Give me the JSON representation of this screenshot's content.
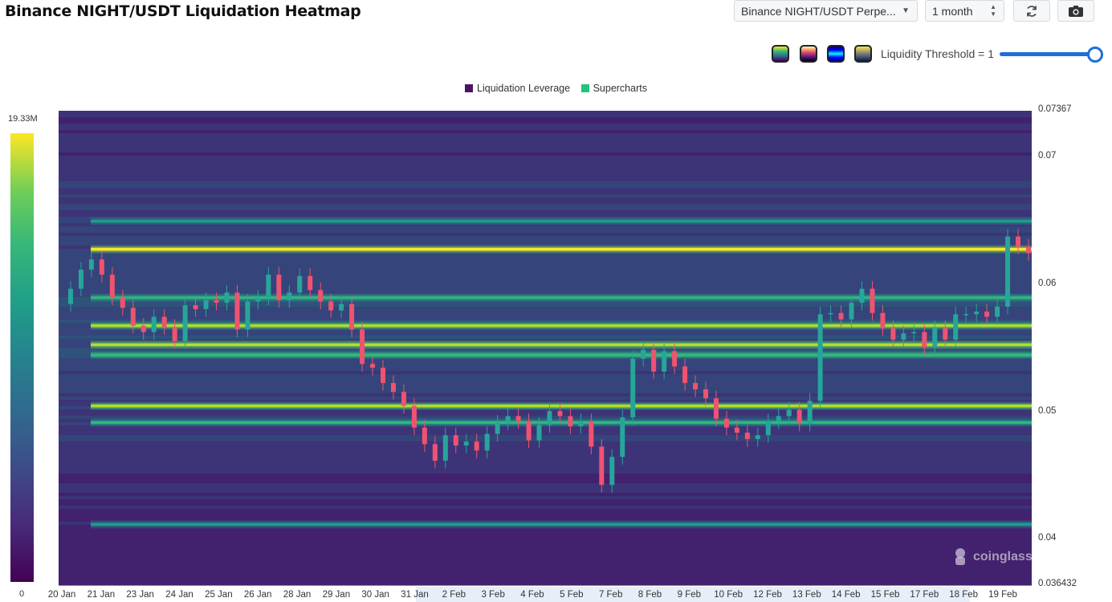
{
  "header": {
    "title": "Binance NIGHT/USDT Liquidation Heatmap",
    "pair_select": "Binance NIGHT/USDT Perpe...",
    "range_select": "1 month"
  },
  "controls": {
    "threshold_label": "Liquidity Threshold = 1",
    "threshold_value": 1,
    "color_themes": [
      "viridis-theme",
      "magma-theme",
      "jet-theme",
      "cividis-theme"
    ]
  },
  "colorbar": {
    "max_label": "19.33M",
    "min_label": "0"
  },
  "watermark": {
    "text": "coinglass"
  },
  "chart_data": {
    "type": "heatmap",
    "title": "Binance NIGHT/USDT Liquidation Heatmap",
    "legend": [
      {
        "name": "Liquidation Leverage",
        "color": "#4a1463"
      },
      {
        "name": "Supercharts",
        "color": "#21c47b"
      }
    ],
    "x_labels": [
      "20 Jan",
      "21 Jan",
      "23 Jan",
      "24 Jan",
      "25 Jan",
      "26 Jan",
      "28 Jan",
      "29 Jan",
      "30 Jan",
      "31 Jan",
      "2 Feb",
      "3 Feb",
      "4 Feb",
      "5 Feb",
      "7 Feb",
      "8 Feb",
      "9 Feb",
      "10 Feb",
      "12 Feb",
      "13 Feb",
      "14 Feb",
      "15 Feb",
      "17 Feb",
      "18 Feb",
      "19 Feb"
    ],
    "y_axis": {
      "min": 0.036432,
      "max": 0.07367,
      "tick_labels": [
        "0.07367",
        "0.07",
        "0.06",
        "0.05",
        "0.04",
        "0.036432"
      ]
    },
    "color_scale": {
      "min": 0,
      "max": 19330000,
      "labels": [
        "0",
        "19.33M"
      ]
    },
    "price_path": [
      [
        0,
        0.0585
      ],
      [
        1,
        0.0597
      ],
      [
        2,
        0.0612
      ],
      [
        3,
        0.062
      ],
      [
        4,
        0.0608
      ],
      [
        5,
        0.059
      ],
      [
        6,
        0.0582
      ],
      [
        7,
        0.0568
      ],
      [
        8,
        0.0563
      ],
      [
        9,
        0.0575
      ],
      [
        10,
        0.0567
      ],
      [
        11,
        0.0556
      ],
      [
        12,
        0.0584
      ],
      [
        13,
        0.0581
      ],
      [
        14,
        0.0588
      ],
      [
        15,
        0.0586
      ],
      [
        16,
        0.0594
      ],
      [
        17,
        0.0565
      ],
      [
        18,
        0.0587
      ],
      [
        19,
        0.059
      ],
      [
        20,
        0.0608
      ],
      [
        21,
        0.0588
      ],
      [
        22,
        0.0594
      ],
      [
        23,
        0.0607
      ],
      [
        24,
        0.0596
      ],
      [
        25,
        0.0587
      ],
      [
        26,
        0.058
      ],
      [
        27,
        0.0585
      ],
      [
        28,
        0.0565
      ],
      [
        29,
        0.0538
      ],
      [
        30,
        0.0535
      ],
      [
        31,
        0.0523
      ],
      [
        32,
        0.0516
      ],
      [
        33,
        0.0505
      ],
      [
        34,
        0.0488
      ],
      [
        35,
        0.0475
      ],
      [
        36,
        0.0462
      ],
      [
        37,
        0.0482
      ],
      [
        38,
        0.0474
      ],
      [
        39,
        0.0477
      ],
      [
        40,
        0.047
      ],
      [
        41,
        0.0483
      ],
      [
        42,
        0.0492
      ],
      [
        43,
        0.0497
      ],
      [
        44,
        0.0493
      ],
      [
        45,
        0.0478
      ],
      [
        46,
        0.049
      ],
      [
        47,
        0.0501
      ],
      [
        48,
        0.0497
      ],
      [
        49,
        0.0489
      ],
      [
        50,
        0.0493
      ],
      [
        51,
        0.0473
      ],
      [
        52,
        0.0443
      ],
      [
        53,
        0.0465
      ],
      [
        54,
        0.0496
      ],
      [
        55,
        0.0542
      ],
      [
        56,
        0.0549
      ],
      [
        57,
        0.0532
      ],
      [
        58,
        0.0548
      ],
      [
        59,
        0.0536
      ],
      [
        60,
        0.0523
      ],
      [
        61,
        0.0518
      ],
      [
        62,
        0.0511
      ],
      [
        63,
        0.0495
      ],
      [
        64,
        0.0488
      ],
      [
        65,
        0.0484
      ],
      [
        66,
        0.0479
      ],
      [
        67,
        0.0482
      ],
      [
        68,
        0.0493
      ],
      [
        69,
        0.0497
      ],
      [
        70,
        0.0502
      ],
      [
        71,
        0.0491
      ],
      [
        72,
        0.0509
      ],
      [
        73,
        0.0577
      ],
      [
        74,
        0.0578
      ],
      [
        75,
        0.0573
      ],
      [
        76,
        0.0586
      ],
      [
        77,
        0.0597
      ],
      [
        78,
        0.0578
      ],
      [
        79,
        0.0566
      ],
      [
        80,
        0.0557
      ],
      [
        81,
        0.0562
      ],
      [
        82,
        0.0563
      ],
      [
        83,
        0.0551
      ],
      [
        84,
        0.0566
      ],
      [
        85,
        0.0557
      ],
      [
        86,
        0.0577
      ],
      [
        87,
        0.0577
      ],
      [
        88,
        0.0579
      ],
      [
        89,
        0.0575
      ],
      [
        90,
        0.0583
      ],
      [
        91,
        0.0638
      ],
      [
        92,
        0.063
      ],
      [
        93,
        0.0625
      ]
    ],
    "liquidation_bands": [
      {
        "price": 0.0628,
        "intensity": 0.95
      },
      {
        "price": 0.0568,
        "intensity": 0.85
      },
      {
        "price": 0.0553,
        "intensity": 0.9
      },
      {
        "price": 0.0545,
        "intensity": 0.7
      },
      {
        "price": 0.0505,
        "intensity": 0.85
      },
      {
        "price": 0.0492,
        "intensity": 0.65
      },
      {
        "price": 0.0412,
        "intensity": 0.55
      },
      {
        "price": 0.065,
        "intensity": 0.55
      },
      {
        "price": 0.059,
        "intensity": 0.65
      }
    ]
  }
}
